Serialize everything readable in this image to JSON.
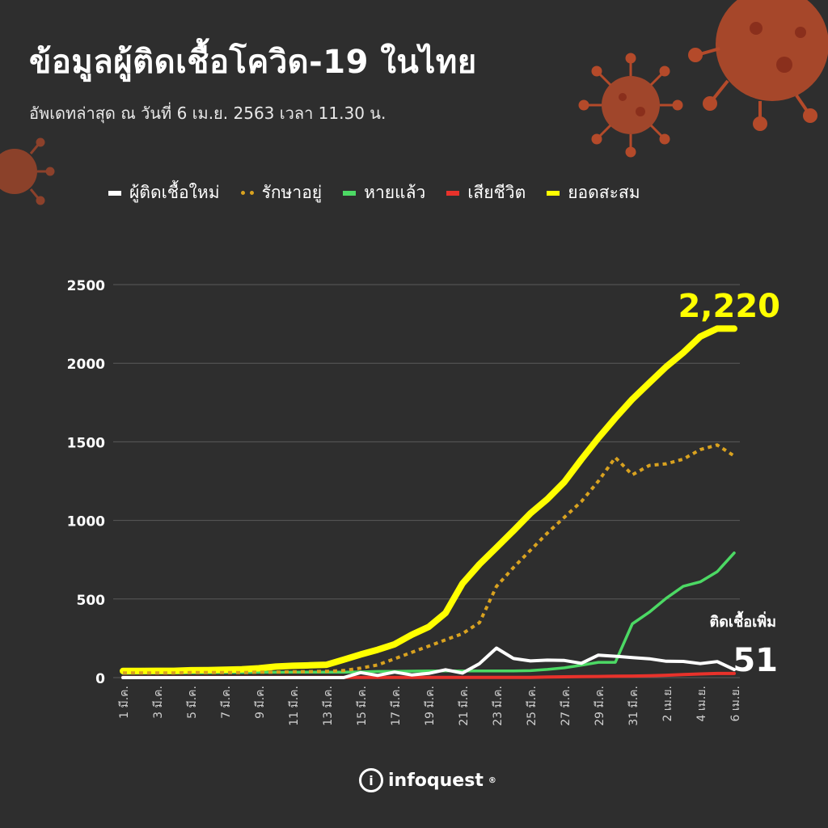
{
  "title": "ข้อมูลผู้ติดเชื้อโควิด-19 ในไทย",
  "subtitle": "อัพเดทล่าสุด ณ วันที่ 6 เม.ย. 2563 เวลา 11.30 น.",
  "brand": {
    "name": "infoquest",
    "mark": "®",
    "logo_letter": "i"
  },
  "colors": {
    "background": "#2e2e2e",
    "new_cases": "#ffffff",
    "active": "#d9a21f",
    "recovered": "#4cd964",
    "deaths": "#e8322b",
    "cumulative": "#ffff00",
    "virus": "#c0582a"
  },
  "chart_data": {
    "type": "line",
    "ylim": [
      0,
      2500
    ],
    "yticks": [
      0,
      500,
      1000,
      1500,
      2000,
      2500
    ],
    "ytick_labels": [
      "0",
      "500",
      "1000",
      "1500",
      "2000",
      "2500"
    ],
    "grid": true,
    "legend_position": "top",
    "x_tick_labels": [
      "1 มี.ค.",
      "3 มี.ค.",
      "5 มี.ค.",
      "7 มี.ค.",
      "9 มี.ค.",
      "11 มี.ค.",
      "13 มี.ค.",
      "15 มี.ค.",
      "17 มี.ค.",
      "19 มี.ค.",
      "21 มี.ค.",
      "23 มี.ค.",
      "25 มี.ค.",
      "27 มี.ค.",
      "29 มี.ค.",
      "31 มี.ค.",
      "2 เม.ย.",
      "4 เม.ย.",
      "6 เม.ย."
    ],
    "x_tick_index": [
      0,
      2,
      4,
      6,
      8,
      10,
      12,
      14,
      16,
      18,
      20,
      22,
      24,
      26,
      28,
      30,
      32,
      34,
      36
    ],
    "series": [
      {
        "key": "new_cases",
        "name": "ผู้ติดเชื้อใหม่",
        "style": "solid",
        "values": [
          0,
          0,
          0,
          0,
          0,
          0,
          0,
          0,
          0,
          0,
          0,
          0,
          0,
          0,
          32,
          14,
          35,
          17,
          27,
          50,
          29,
          89,
          188,
          122,
          106,
          111,
          109,
          91,
          143,
          136,
          127,
          120,
          104,
          103,
          89,
          102,
          51
        ]
      },
      {
        "key": "active",
        "name": "รักษาอยู่",
        "style": "dotted",
        "values": [
          30,
          30,
          30,
          30,
          32,
          32,
          32,
          32,
          35,
          35,
          37,
          38,
          40,
          45,
          60,
          80,
          120,
          160,
          200,
          240,
          280,
          350,
          580,
          700,
          810,
          920,
          1020,
          1120,
          1250,
          1400,
          1290,
          1350,
          1360,
          1390,
          1450,
          1480,
          1410
        ]
      },
      {
        "key": "recovered",
        "name": "หายแล้ว",
        "style": "solid",
        "values": [
          28,
          29,
          30,
          30,
          31,
          31,
          33,
          33,
          34,
          34,
          35,
          35,
          35,
          35,
          36,
          39,
          40,
          41,
          42,
          42,
          42,
          42,
          42,
          42,
          44,
          52,
          62,
          79,
          97,
          97,
          342,
          416,
          505,
          581,
          609,
          674,
          793
        ]
      },
      {
        "key": "deaths",
        "name": "เสียชีวิต",
        "style": "solid",
        "values": [
          1,
          1,
          1,
          1,
          1,
          1,
          1,
          1,
          1,
          1,
          1,
          1,
          1,
          1,
          1,
          1,
          1,
          1,
          1,
          1,
          1,
          1,
          1,
          1,
          1,
          4,
          5,
          6,
          7,
          9,
          10,
          12,
          15,
          19,
          23,
          26,
          26
        ]
      },
      {
        "key": "cumulative",
        "name": "ยอดสะสม",
        "style": "solid",
        "values": [
          42,
          42,
          43,
          43,
          47,
          48,
          50,
          53,
          59,
          70,
          75,
          78,
          82,
          114,
          147,
          177,
          212,
          272,
          322,
          411,
          599,
          721,
          827,
          934,
          1045,
          1136,
          1245,
          1388,
          1524,
          1651,
          1771,
          1875,
          1978,
          2067,
          2169,
          2220,
          2220
        ]
      }
    ],
    "annotations": {
      "cumulative_label": "2,220",
      "new_cases_caption": "ติดเชื้อเพิ่ม",
      "new_cases_value": "51"
    }
  }
}
